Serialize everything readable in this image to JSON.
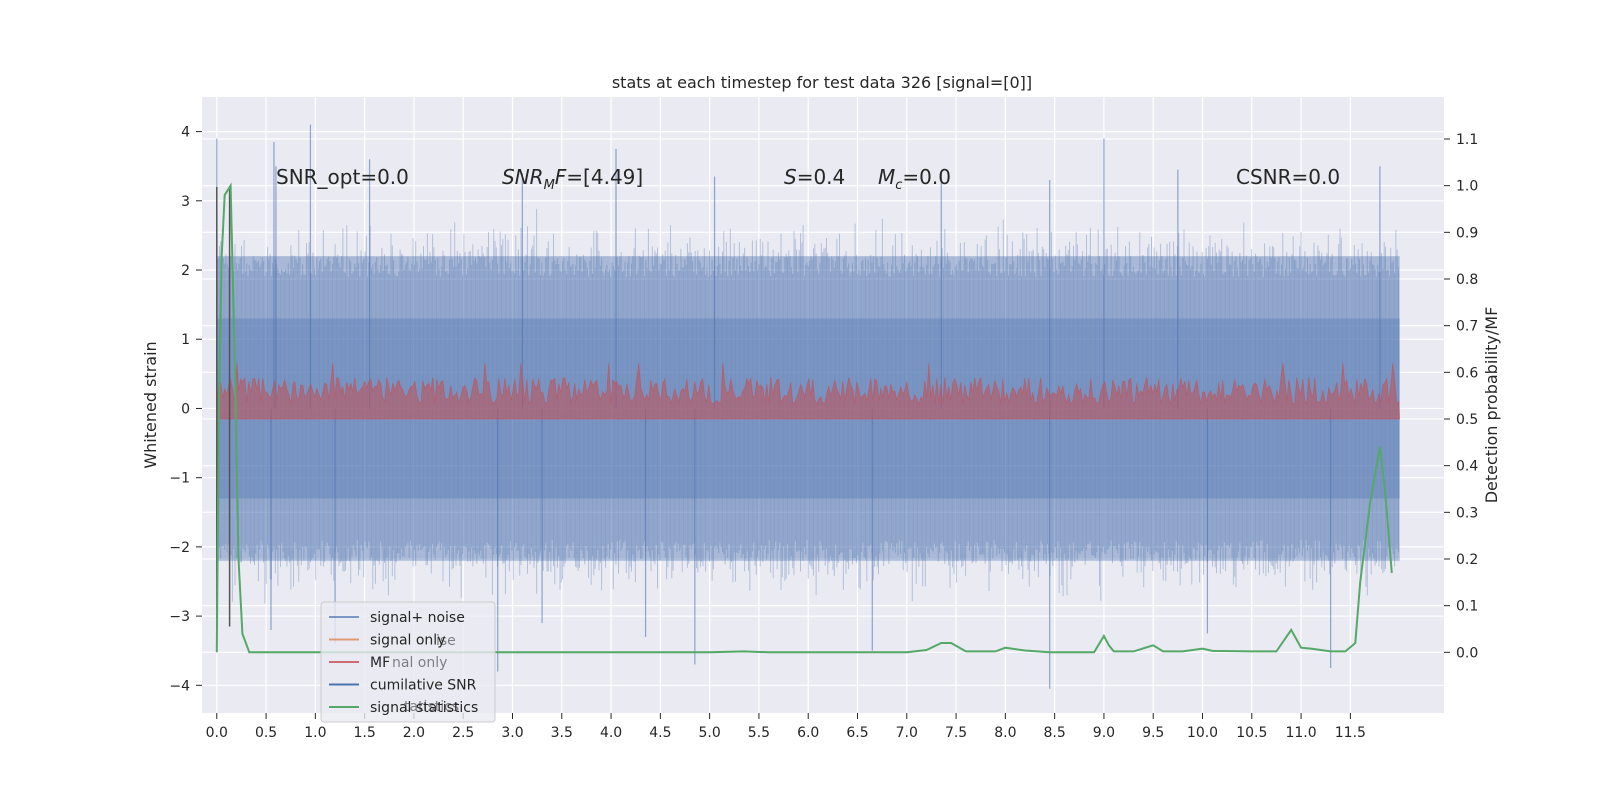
{
  "chart_data": {
    "type": "line",
    "title": "stats at each timestep for test data 326 [signal=[0]]",
    "ylabel": "Whitened strain",
    "y2label": "Detection probability/MF",
    "xlim": [
      -0.15,
      12.45
    ],
    "ylim": [
      -4.4,
      4.5
    ],
    "y2lim": [
      -0.13,
      1.19
    ],
    "x_ticks": [
      "0.0",
      "0.5",
      "1.0",
      "1.5",
      "2.0",
      "2.5",
      "3.0",
      "3.5",
      "4.0",
      "4.5",
      "5.0",
      "5.5",
      "6.0",
      "6.5",
      "7.0",
      "7.5",
      "8.0",
      "8.5",
      "9.0",
      "9.5",
      "10.0",
      "10.5",
      "11.0",
      "11.5"
    ],
    "y_ticks": [
      "4",
      "3",
      "2",
      "1",
      "0",
      "−1",
      "−2",
      "−3",
      "−4"
    ],
    "y2_ticks": [
      "1.1",
      "1.0",
      "0.9",
      "0.8",
      "0.7",
      "0.6",
      "0.5",
      "0.4",
      "0.3",
      "0.2",
      "0.1",
      "0.0"
    ],
    "grid": true,
    "legend_position": "lower-left",
    "annotations": {
      "snr_opt": "SNR_opt=0.0",
      "snr_mf_name": "SNR",
      "snr_mf_sub": "M",
      "snr_mf_tail": "F=[4.49]",
      "s_name": "S",
      "s_value": "=0.4",
      "mc_name": "M",
      "mc_sub": "c",
      "mc_value": "=0.0",
      "csnr": "CSNR=0.0"
    },
    "ghost_legend_labels": [
      "ise",
      "nal only",
      "tatistics"
    ],
    "series": [
      {
        "name": "signal+ noise",
        "axis": "left",
        "color": "#4c72b0",
        "x_range": [
          0.0,
          12.0
        ],
        "band_1sigma": [
          -1.3,
          1.3
        ],
        "band_2sigma": [
          -2.2,
          2.2
        ],
        "peaks": [
          {
            "x": 0.0,
            "y": 3.9
          },
          {
            "x": 0.6,
            "y": 3.5
          },
          {
            "x": 0.58,
            "y": 3.85
          },
          {
            "x": 0.95,
            "y": 4.1
          },
          {
            "x": 1.55,
            "y": 3.6
          },
          {
            "x": 3.1,
            "y": 3.4
          },
          {
            "x": 4.05,
            "y": 3.75
          },
          {
            "x": 5.05,
            "y": 3.35
          },
          {
            "x": 7.35,
            "y": 3.4
          },
          {
            "x": 8.45,
            "y": 3.3
          },
          {
            "x": 9.0,
            "y": 3.9
          },
          {
            "x": 9.75,
            "y": 3.45
          },
          {
            "x": 11.8,
            "y": 3.5
          }
        ],
        "troughs": [
          {
            "x": 0.55,
            "y": -3.2
          },
          {
            "x": 1.2,
            "y": -3.4
          },
          {
            "x": 2.85,
            "y": -3.8
          },
          {
            "x": 3.3,
            "y": -3.1
          },
          {
            "x": 4.35,
            "y": -3.3
          },
          {
            "x": 4.85,
            "y": -3.7
          },
          {
            "x": 6.65,
            "y": -3.5
          },
          {
            "x": 8.45,
            "y": -4.05
          },
          {
            "x": 10.05,
            "y": -3.25
          },
          {
            "x": 11.3,
            "y": -3.75
          }
        ]
      },
      {
        "name": "signal only",
        "axis": "left",
        "color": "#dd8452",
        "values_note": "flat at zero"
      },
      {
        "name": "MF",
        "axis": "right",
        "color": "#c44e52",
        "x_range": [
          0.0,
          12.0
        ],
        "base": 0.5,
        "typical_top": 0.59,
        "max_top": 0.62
      },
      {
        "name": "cumilative SNR",
        "axis": "left",
        "color": "#4c72b0",
        "values_note": "flat at zero"
      },
      {
        "name": "signal statistics",
        "axis": "right",
        "color": "#55a868",
        "points": [
          [
            0.0,
            0.0
          ],
          [
            0.02,
            0.5
          ],
          [
            0.05,
            0.85
          ],
          [
            0.08,
            0.98
          ],
          [
            0.14,
            1.0
          ],
          [
            0.18,
            0.65
          ],
          [
            0.22,
            0.2
          ],
          [
            0.26,
            0.04
          ],
          [
            0.33,
            0.0
          ],
          [
            0.5,
            0.0
          ],
          [
            1.0,
            0.0
          ],
          [
            2.0,
            0.0
          ],
          [
            3.0,
            0.0
          ],
          [
            4.0,
            0.0
          ],
          [
            5.0,
            0.0
          ],
          [
            5.35,
            0.002
          ],
          [
            5.6,
            0.0
          ],
          [
            6.0,
            0.0
          ],
          [
            6.3,
            0.0
          ],
          [
            6.6,
            0.0
          ],
          [
            7.0,
            0.0
          ],
          [
            7.2,
            0.005
          ],
          [
            7.35,
            0.02
          ],
          [
            7.45,
            0.02
          ],
          [
            7.6,
            0.002
          ],
          [
            7.9,
            0.002
          ],
          [
            8.0,
            0.01
          ],
          [
            8.2,
            0.004
          ],
          [
            8.45,
            0.0
          ],
          [
            8.9,
            0.0
          ],
          [
            9.0,
            0.035
          ],
          [
            9.05,
            0.015
          ],
          [
            9.1,
            0.002
          ],
          [
            9.3,
            0.002
          ],
          [
            9.5,
            0.015
          ],
          [
            9.6,
            0.002
          ],
          [
            9.8,
            0.002
          ],
          [
            10.0,
            0.008
          ],
          [
            10.1,
            0.003
          ],
          [
            10.5,
            0.002
          ],
          [
            10.75,
            0.002
          ],
          [
            10.9,
            0.048
          ],
          [
            11.0,
            0.01
          ],
          [
            11.1,
            0.008
          ],
          [
            11.3,
            0.002
          ],
          [
            11.45,
            0.002
          ],
          [
            11.55,
            0.02
          ],
          [
            11.6,
            0.15
          ],
          [
            11.7,
            0.32
          ],
          [
            11.8,
            0.44
          ],
          [
            11.85,
            0.35
          ],
          [
            11.92,
            0.17
          ]
        ]
      }
    ],
    "vertical_markers": [
      {
        "x": 0.0,
        "y_from": -3.15,
        "y_to": 3.2,
        "color": "#555555"
      },
      {
        "x": 0.13,
        "y_from": -3.15,
        "y_to": 3.2,
        "color": "#555555"
      }
    ]
  }
}
